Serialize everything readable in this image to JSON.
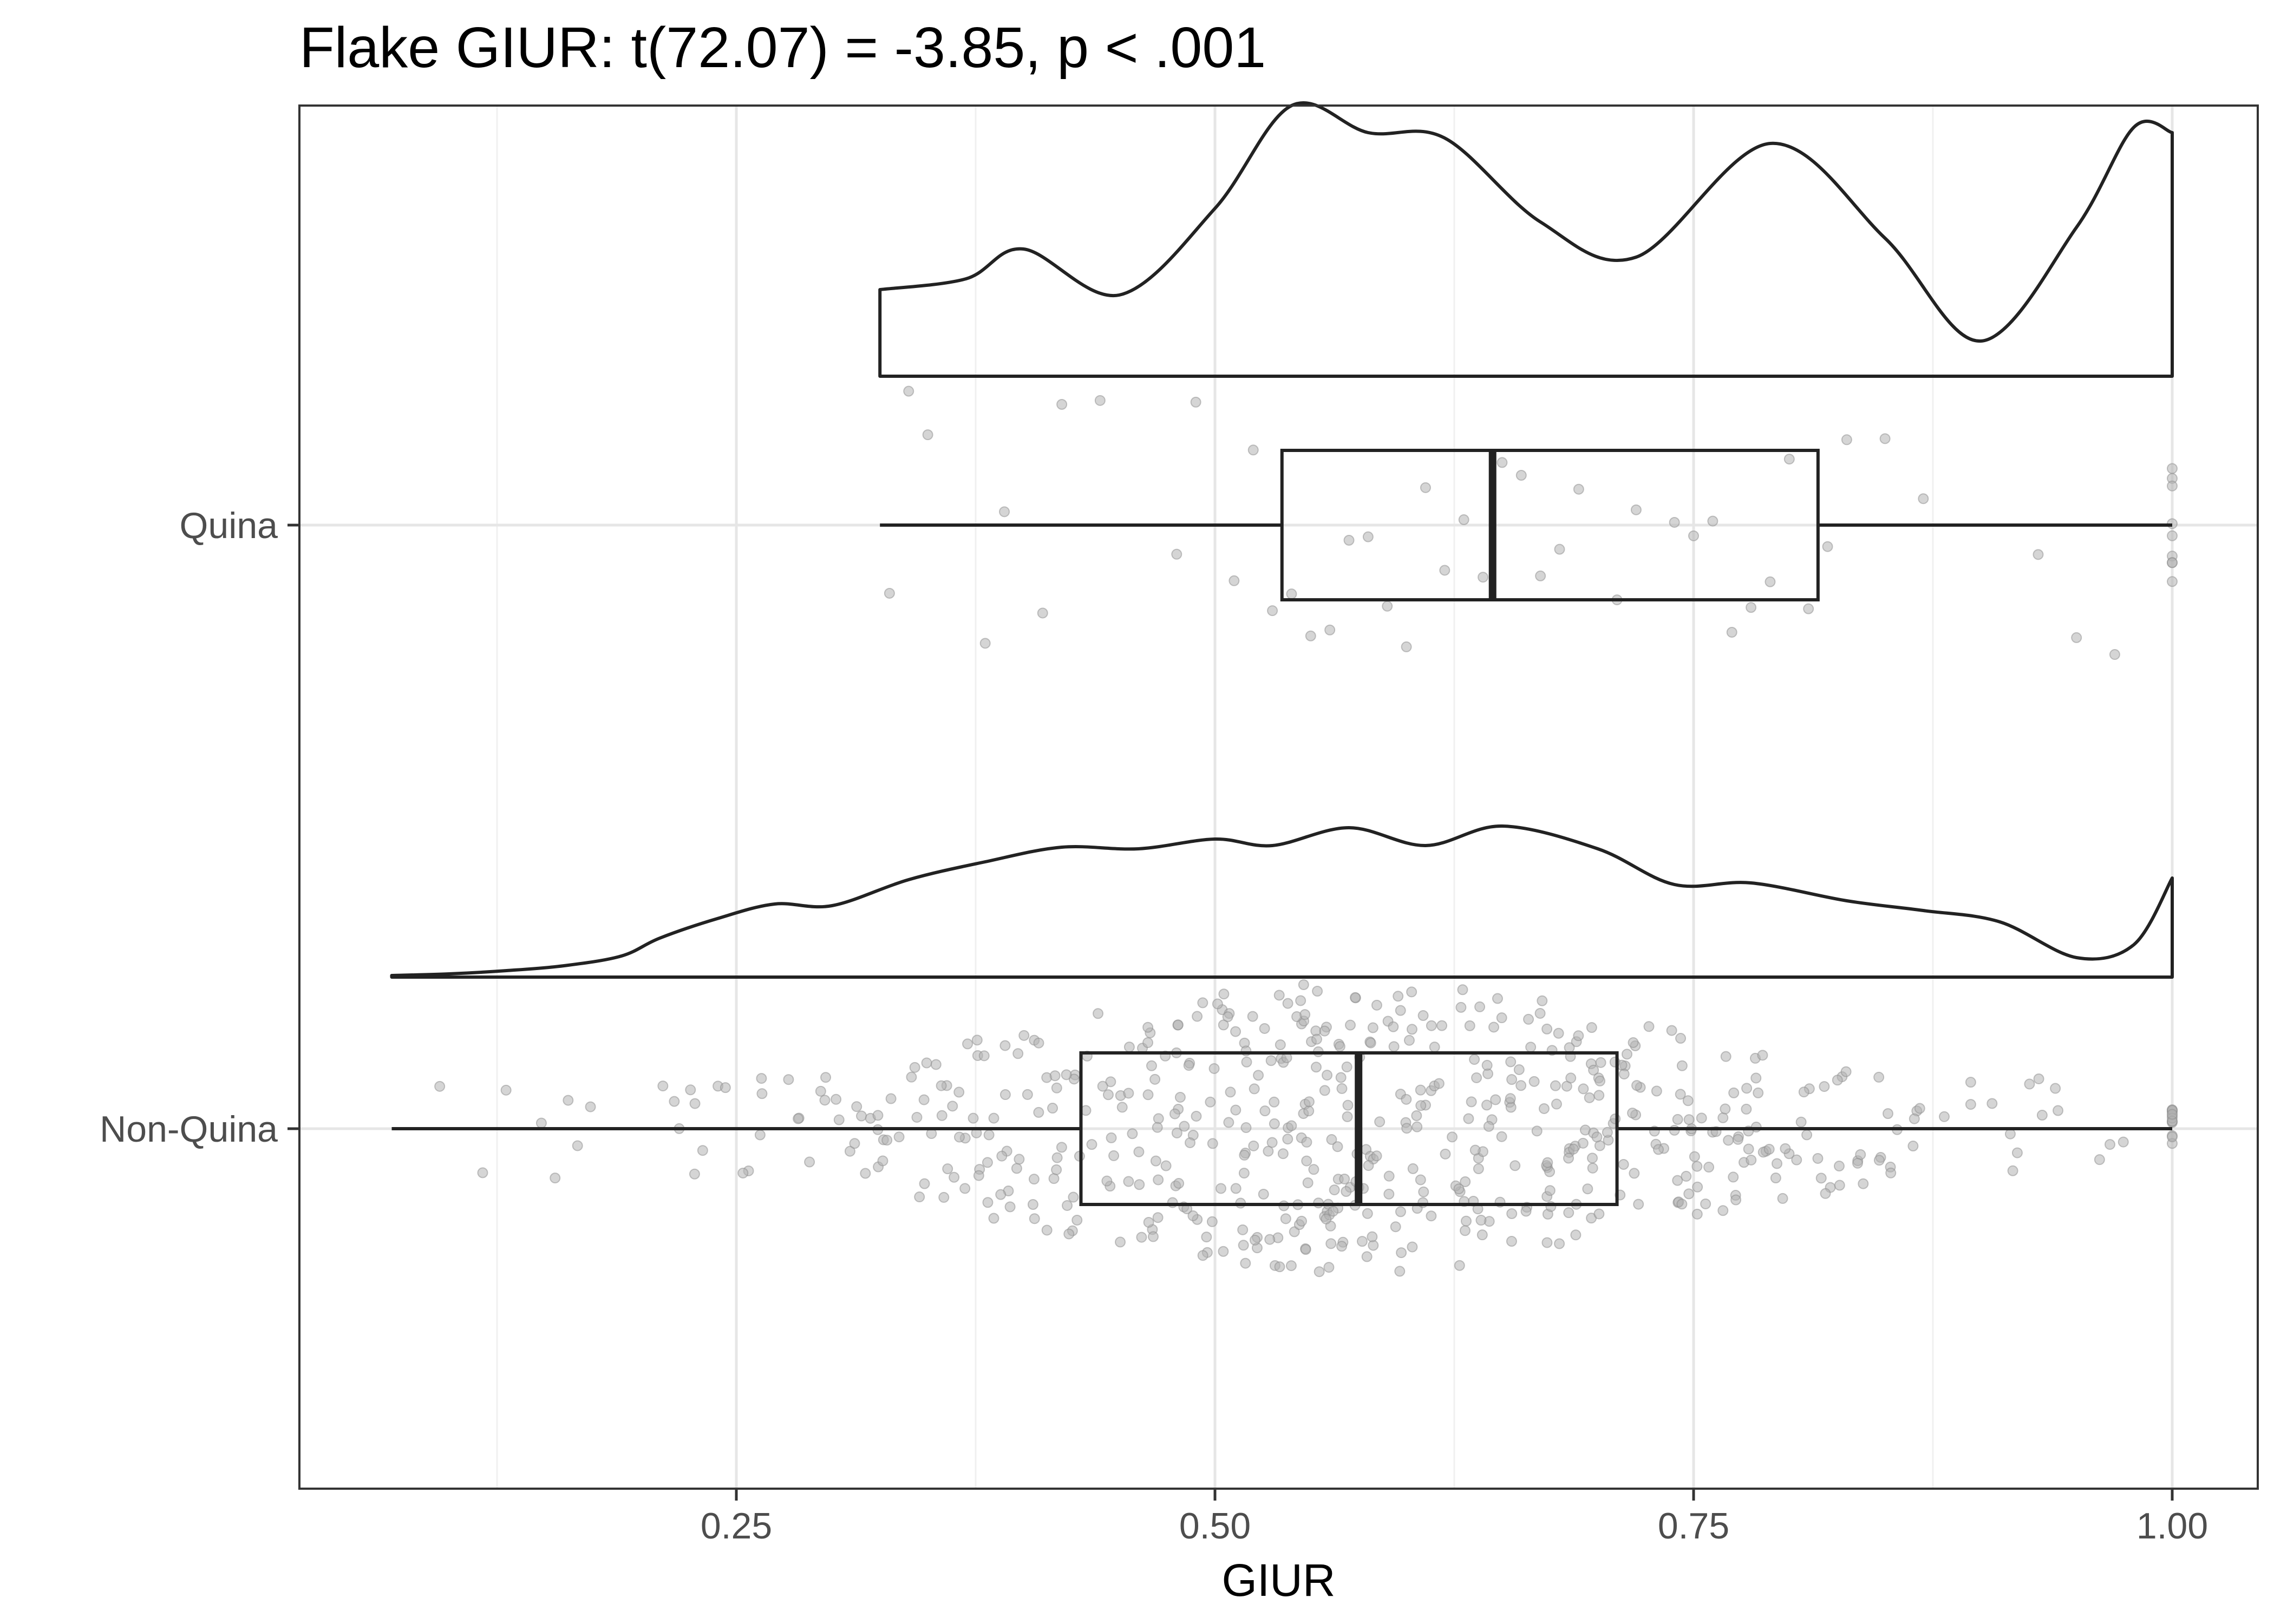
{
  "chart_data": {
    "type": "raincloud",
    "title": "Flake GIUR: t(72.07) = -3.85, p < .001",
    "xlabel": "GIUR",
    "ylabel": "",
    "xlim": [
      0.04,
      1.045
    ],
    "x_ticks": [
      0.25,
      0.5,
      0.75,
      1.0
    ],
    "x_tick_labels": [
      "0.25",
      "0.50",
      "0.75",
      "1.00"
    ],
    "grid": true,
    "legend": "none",
    "groups": [
      {
        "label": "Non-Quina",
        "box": {
          "min": 0.07,
          "q1": 0.43,
          "median": 0.575,
          "q3": 0.71,
          "max": 1.0
        },
        "density": {
          "x": [
            0.07,
            0.1,
            0.13,
            0.16,
            0.19,
            0.21,
            0.24,
            0.27,
            0.3,
            0.34,
            0.38,
            0.42,
            0.46,
            0.5,
            0.53,
            0.57,
            0.61,
            0.65,
            0.7,
            0.74,
            0.78,
            0.83,
            0.87,
            0.91,
            0.95,
            0.98,
            1.0
          ],
          "y": [
            0.01,
            0.02,
            0.04,
            0.07,
            0.13,
            0.24,
            0.36,
            0.45,
            0.44,
            0.6,
            0.71,
            0.8,
            0.79,
            0.85,
            0.81,
            0.92,
            0.81,
            0.93,
            0.79,
            0.57,
            0.58,
            0.47,
            0.41,
            0.34,
            0.12,
            0.2,
            0.61
          ]
        },
        "points_n": 600
      },
      {
        "label": "Quina",
        "box": {
          "min": 0.325,
          "q1": 0.535,
          "median": 0.645,
          "q3": 0.815,
          "max": 1.0
        },
        "density": {
          "x": [
            0.325,
            0.37,
            0.4,
            0.45,
            0.5,
            0.54,
            0.58,
            0.62,
            0.67,
            0.72,
            0.79,
            0.85,
            0.9,
            0.95,
            0.98,
            1.0
          ],
          "y": [
            0.32,
            0.36,
            0.47,
            0.3,
            0.62,
            1.0,
            0.9,
            0.88,
            0.57,
            0.44,
            0.86,
            0.51,
            0.13,
            0.55,
            0.92,
            0.9
          ]
        },
        "points": [
          0.33,
          0.34,
          0.35,
          0.38,
          0.39,
          0.41,
          0.42,
          0.44,
          0.48,
          0.49,
          0.51,
          0.52,
          0.53,
          0.54,
          0.55,
          0.56,
          0.57,
          0.58,
          0.59,
          0.6,
          0.61,
          0.62,
          0.63,
          0.64,
          0.65,
          0.66,
          0.67,
          0.68,
          0.69,
          0.71,
          0.72,
          0.74,
          0.75,
          0.76,
          0.77,
          0.78,
          0.79,
          0.8,
          0.81,
          0.82,
          0.83,
          0.85,
          0.87,
          0.93,
          0.95,
          0.97,
          1.0,
          1.0,
          1.0,
          1.0,
          1.0,
          1.0,
          1.0,
          1.0,
          1.0
        ]
      }
    ]
  }
}
